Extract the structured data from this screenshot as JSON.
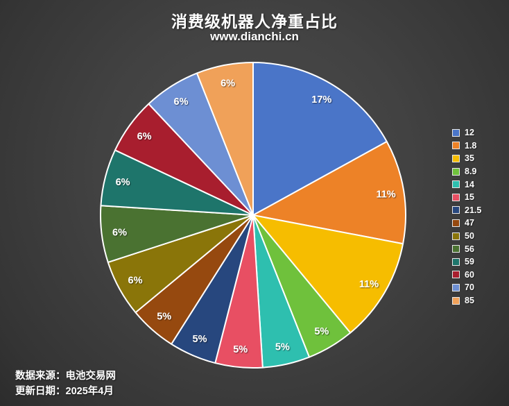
{
  "title": "消费级机器人净重占比",
  "subtitle": "www.dianchi.cn",
  "footer": {
    "source": "数据来源：电池交易网",
    "updated": "更新日期：2025年4月"
  },
  "chart_data": {
    "type": "pie",
    "title": "消费级机器人净重占比",
    "subtitle": "www.dianchi.cn",
    "categories": [
      "12",
      "1.8",
      "35",
      "8.9",
      "14",
      "15",
      "21.5",
      "47",
      "50",
      "56",
      "59",
      "60",
      "70",
      "85"
    ],
    "values": [
      17,
      11,
      11,
      5,
      5,
      5,
      5,
      5,
      6,
      6,
      6,
      6,
      6,
      6
    ],
    "percent_labels": [
      "17%",
      "11%",
      "11%",
      "5%",
      "5%",
      "5%",
      "5%",
      "5%",
      "6%",
      "6%",
      "6%",
      "6%",
      "6%",
      "6%"
    ],
    "colors": [
      "#4A75C8",
      "#ED8227",
      "#F6BD00",
      "#6FC13C",
      "#2EBFAF",
      "#E84F63",
      "#27477E",
      "#96490F",
      "#8A7509",
      "#4A7231",
      "#1E756B",
      "#A81E2E",
      "#6D8FD3",
      "#F0A159"
    ],
    "slice_border_color": "#ffffff",
    "label_color": "#ffffff",
    "background_color": "#424242",
    "legend_position": "right",
    "start_angle_deg": 0,
    "direction": "clockwise"
  }
}
